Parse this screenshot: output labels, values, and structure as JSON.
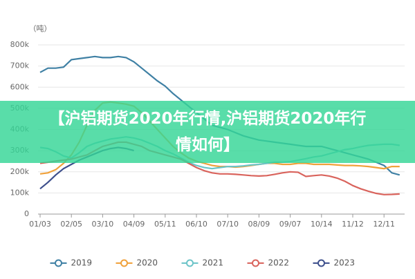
{
  "chart_data": {
    "type": "line",
    "y_unit": "（吨）",
    "categories": [
      "01/03",
      null,
      null,
      null,
      "02/05",
      null,
      null,
      null,
      "03/10",
      null,
      null,
      null,
      "04/09",
      null,
      null,
      null,
      "05/11",
      null,
      null,
      null,
      "06/10",
      null,
      null,
      null,
      "07/10",
      null,
      null,
      null,
      "08/09",
      null,
      null,
      null,
      "09/07",
      null,
      null,
      null,
      "10/14",
      null,
      null,
      null,
      "11/12",
      null,
      null,
      null,
      "12/11",
      null,
      null
    ],
    "series": [
      {
        "name": "2019",
        "color": "#3f80a4",
        "values": [
          670000,
          690000,
          690000,
          695000,
          730000,
          735000,
          740000,
          745000,
          740000,
          740000,
          745000,
          740000,
          720000,
          690000,
          660000,
          630000,
          605000,
          570000,
          540000,
          510000,
          480000,
          450000,
          420000,
          410000,
          400000,
          385000,
          370000,
          360000,
          350000,
          345000,
          340000,
          335000,
          330000,
          325000,
          320000,
          320000,
          320000,
          310000,
          300000,
          290000,
          280000,
          270000,
          260000,
          245000,
          230000,
          195000,
          185000
        ]
      },
      {
        "name": "2020",
        "color": "#f0a13a",
        "values": [
          190000,
          195000,
          210000,
          240000,
          280000,
          340000,
          420000,
          490000,
          525000,
          530000,
          525000,
          520000,
          510000,
          480000,
          440000,
          400000,
          360000,
          320000,
          290000,
          265000,
          250000,
          240000,
          230000,
          225000,
          225000,
          222000,
          225000,
          230000,
          235000,
          240000,
          240000,
          235000,
          235000,
          240000,
          240000,
          235000,
          235000,
          235000,
          232000,
          230000,
          230000,
          228000,
          225000,
          220000,
          215000,
          225000,
          225000
        ]
      },
      {
        "name": "2021",
        "color": "#6cc4c8",
        "values": [
          315000,
          310000,
          295000,
          275000,
          265000,
          290000,
          320000,
          335000,
          345000,
          355000,
          360000,
          365000,
          360000,
          350000,
          335000,
          320000,
          300000,
          285000,
          265000,
          245000,
          230000,
          220000,
          215000,
          220000,
          225000,
          225000,
          228000,
          232000,
          235000,
          240000,
          245000,
          245000,
          248000,
          255000,
          262000,
          270000,
          275000,
          285000,
          295000,
          305000,
          310000,
          318000,
          325000,
          328000,
          330000,
          330000,
          325000
        ]
      },
      {
        "name": "2022",
        "color": "#d9635c",
        "values": [
          240000,
          245000,
          250000,
          255000,
          260000,
          270000,
          280000,
          300000,
          320000,
          330000,
          340000,
          340000,
          330000,
          320000,
          300000,
          290000,
          280000,
          270000,
          260000,
          240000,
          220000,
          205000,
          195000,
          190000,
          190000,
          188000,
          185000,
          182000,
          180000,
          182000,
          188000,
          195000,
          200000,
          198000,
          178000,
          182000,
          185000,
          180000,
          170000,
          155000,
          135000,
          120000,
          108000,
          98000,
          92000,
          93000,
          95000
        ]
      },
      {
        "name": "2023",
        "color": "#3d4f8c",
        "values": [
          120000,
          150000,
          185000,
          215000,
          235000,
          255000,
          270000,
          285000,
          300000,
          310000,
          315000,
          310000,
          300000,
          null,
          null,
          null,
          null,
          null,
          null,
          null,
          null,
          null,
          null,
          null,
          null,
          null,
          null,
          null,
          null,
          null,
          null,
          null,
          null,
          null,
          null,
          null,
          null,
          null,
          null,
          null,
          null,
          null,
          null,
          null,
          null,
          null,
          null
        ]
      }
    ],
    "ylim": [
      0,
      800000
    ],
    "yticks": [
      0,
      {
        "value": 100000,
        "label": "100k"
      },
      {
        "value": 200000,
        "label": "200k"
      },
      {
        "value": 300000,
        "label": "300k"
      },
      {
        "value": 400000,
        "label": "400k"
      },
      {
        "value": 500000,
        "label": "500k"
      },
      {
        "value": 600000,
        "label": "600k"
      },
      {
        "value": 700000,
        "label": "700k"
      },
      {
        "value": 800000,
        "label": "800k"
      }
    ],
    "grid": true
  },
  "banner": {
    "text": "【沪铝期货2020年行情,沪铝期货2020年行情如何】"
  }
}
